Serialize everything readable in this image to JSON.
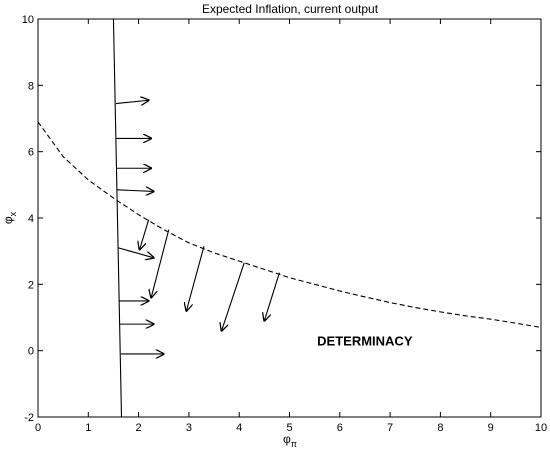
{
  "chart_data": {
    "type": "line",
    "title": "Expected Inflation, current output",
    "xlabel_base": "φ",
    "xlabel_sub": "π",
    "ylabel_base": "φ",
    "ylabel_sub": "x",
    "xlim": [
      0,
      10
    ],
    "ylim": [
      -2,
      10
    ],
    "xticks": [
      0,
      1,
      2,
      3,
      4,
      5,
      6,
      7,
      8,
      9,
      10
    ],
    "yticks": [
      -2,
      0,
      2,
      4,
      6,
      8,
      10
    ],
    "grid": false,
    "legend": "none",
    "series": [
      {
        "style": "solid",
        "x": [
          1.5,
          1.66
        ],
        "y": [
          10,
          -2
        ]
      },
      {
        "style": "dashed",
        "x": [
          0,
          0.5,
          1,
          1.5,
          2,
          2.5,
          3,
          3.5,
          4,
          4.5,
          5,
          5.5,
          6,
          6.5,
          7,
          7.5,
          8,
          8.5,
          9,
          9.5,
          10
        ],
        "y": [
          6.9,
          5.85,
          5.15,
          4.6,
          4.1,
          3.65,
          3.25,
          2.95,
          2.7,
          2.45,
          2.2,
          2.0,
          1.8,
          1.62,
          1.45,
          1.3,
          1.17,
          1.05,
          0.95,
          0.83,
          0.7
        ]
      }
    ],
    "arrows": [
      {
        "x0": 1.55,
        "y0": 7.45,
        "x1": 2.2,
        "y1": 7.55
      },
      {
        "x0": 1.56,
        "y0": 6.4,
        "x1": 2.25,
        "y1": 6.4
      },
      {
        "x0": 1.57,
        "y0": 5.5,
        "x1": 2.25,
        "y1": 5.5
      },
      {
        "x0": 1.58,
        "y0": 4.85,
        "x1": 2.3,
        "y1": 4.8
      },
      {
        "x0": 2.2,
        "y0": 3.95,
        "x1": 2.02,
        "y1": 3.05
      },
      {
        "x0": 1.6,
        "y0": 3.1,
        "x1": 2.3,
        "y1": 2.8
      },
      {
        "x0": 2.6,
        "y0": 3.65,
        "x1": 2.25,
        "y1": 1.6
      },
      {
        "x0": 3.3,
        "y0": 3.15,
        "x1": 2.95,
        "y1": 1.2
      },
      {
        "x0": 4.1,
        "y0": 2.65,
        "x1": 3.65,
        "y1": 0.6
      },
      {
        "x0": 4.8,
        "y0": 2.35,
        "x1": 4.5,
        "y1": 0.9
      },
      {
        "x0": 1.62,
        "y0": 1.5,
        "x1": 2.2,
        "y1": 1.5
      },
      {
        "x0": 1.63,
        "y0": 0.8,
        "x1": 2.3,
        "y1": 0.8
      },
      {
        "x0": 1.65,
        "y0": -0.1,
        "x1": 2.5,
        "y1": -0.1
      }
    ],
    "annotations": [
      {
        "text": "DETERMINACY",
        "x": 5.55,
        "y": 0.15
      }
    ]
  }
}
